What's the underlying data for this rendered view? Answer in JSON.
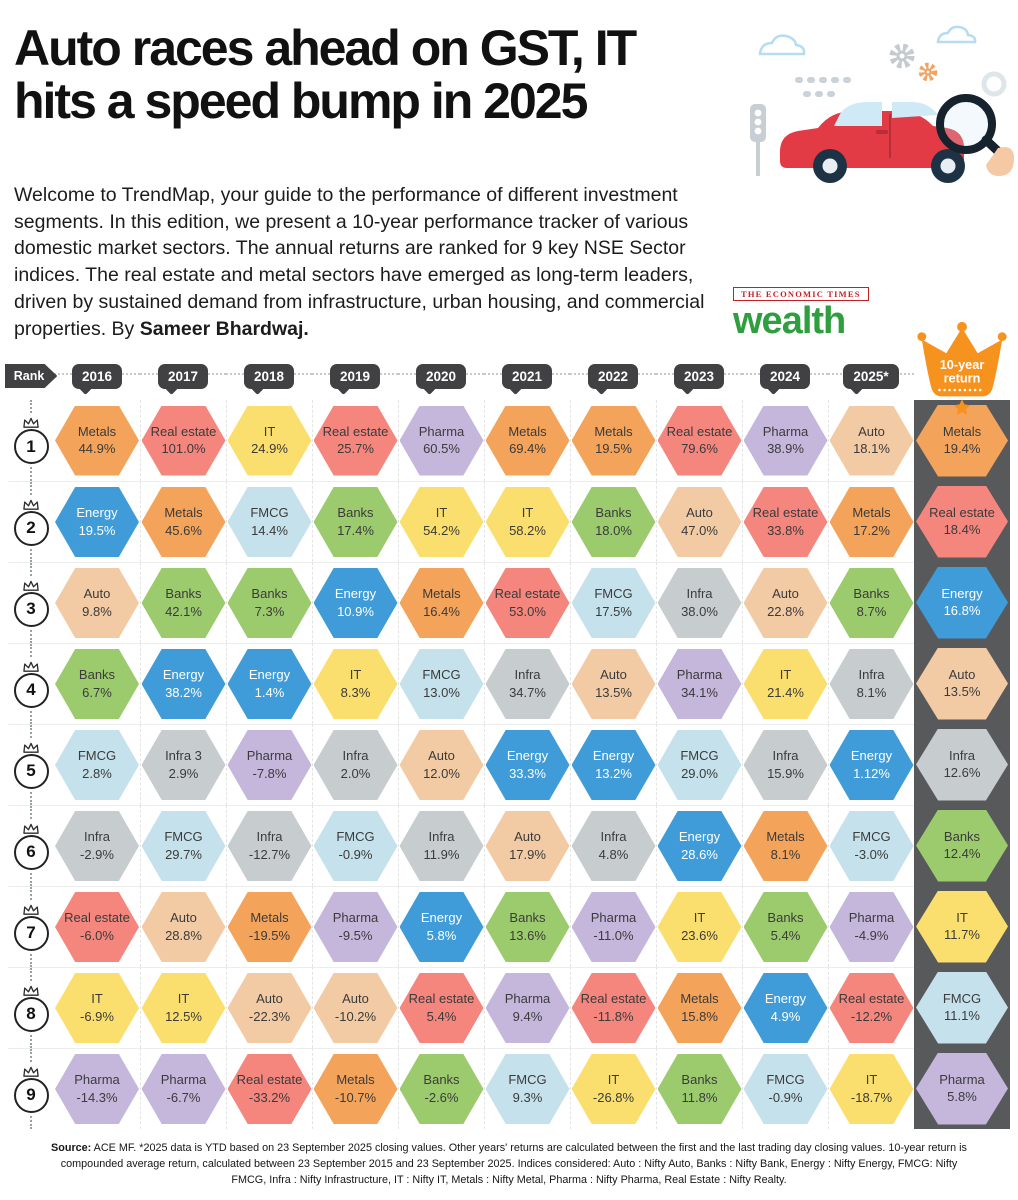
{
  "header": {
    "title_line1": "Auto races ahead on GST, IT",
    "title_line2": "hits a speed bump in 2025",
    "intro": "Welcome to TrendMap, your guide to the performance of different investment segments. In this edition, we present a 10-year performance tracker of various domestic market sectors. The annual returns are ranked for 9 key NSE Sector indices. The real estate and metal sectors have emerged as long-term leaders, driven by sustained demand from infrastructure, urban housing, and commercial properties. By",
    "author": "Sameer Bhardwaj.",
    "brand_top": "The Economic Times",
    "brand_main": "wealth"
  },
  "chart_data": {
    "type": "table",
    "title": "Auto races ahead on GST, IT hits a speed bump in 2025 - 10-year sector returns ranked 1 to 9",
    "rank_label": "Rank",
    "years": [
      "2016",
      "2017",
      "2018",
      "2019",
      "2020",
      "2021",
      "2022",
      "2023",
      "2024",
      "2025*"
    ],
    "crown_label_line1": "10-year",
    "crown_label_line2": "return",
    "crown_color": "#F6921E",
    "strip_color": "#58595b",
    "sector_colors": {
      "Metals": "#F4A35A",
      "Real estate": "#F4867E",
      "IT": "#FBDF6E",
      "Pharma": "#C5B7DC",
      "Energy": "#3F9CD9",
      "Banks": "#9CCB6E",
      "FMCG": "#C5E1EB",
      "Auto": "#F2CBA5",
      "Infra": "#C7CCCF"
    },
    "sector_text_colors": {
      "Energy": "#FFFFFF"
    },
    "default_text_color": "#3B3B3B",
    "rows": [
      {
        "rank": "1",
        "cells": [
          {
            "sector": "Metals",
            "value": "44.9%"
          },
          {
            "sector": "Real estate",
            "value": "101.0%"
          },
          {
            "sector": "IT",
            "value": "24.9%"
          },
          {
            "sector": "Real estate",
            "value": "25.7%"
          },
          {
            "sector": "Pharma",
            "value": "60.5%"
          },
          {
            "sector": "Metals",
            "value": "69.4%"
          },
          {
            "sector": "Metals",
            "value": "19.5%"
          },
          {
            "sector": "Real estate",
            "value": "79.6%"
          },
          {
            "sector": "Pharma",
            "value": "38.9%"
          },
          {
            "sector": "Auto",
            "value": "18.1%"
          }
        ],
        "ten_year": {
          "sector": "Metals",
          "value": "19.4%"
        }
      },
      {
        "rank": "2",
        "cells": [
          {
            "sector": "Energy",
            "value": "19.5%"
          },
          {
            "sector": "Metals",
            "value": "45.6%"
          },
          {
            "sector": "FMCG",
            "value": "14.4%"
          },
          {
            "sector": "Banks",
            "value": "17.4%"
          },
          {
            "sector": "IT",
            "value": "54.2%"
          },
          {
            "sector": "IT",
            "value": "58.2%"
          },
          {
            "sector": "Banks",
            "value": "18.0%"
          },
          {
            "sector": "Auto",
            "value": "47.0%"
          },
          {
            "sector": "Real estate",
            "value": "33.8%"
          },
          {
            "sector": "Metals",
            "value": "17.2%"
          }
        ],
        "ten_year": {
          "sector": "Real estate",
          "value": "18.4%"
        }
      },
      {
        "rank": "3",
        "cells": [
          {
            "sector": "Auto",
            "value": "9.8%"
          },
          {
            "sector": "Banks",
            "value": "42.1%"
          },
          {
            "sector": "Banks",
            "value": "7.3%"
          },
          {
            "sector": "Energy",
            "value": "10.9%"
          },
          {
            "sector": "Metals",
            "value": "16.4%"
          },
          {
            "sector": "Real estate",
            "value": "53.0%"
          },
          {
            "sector": "FMCG",
            "value": "17.5%"
          },
          {
            "sector": "Infra",
            "value": "38.0%"
          },
          {
            "sector": "Auto",
            "value": "22.8%"
          },
          {
            "sector": "Banks",
            "value": "8.7%"
          }
        ],
        "ten_year": {
          "sector": "Energy",
          "value": "16.8%"
        }
      },
      {
        "rank": "4",
        "cells": [
          {
            "sector": "Banks",
            "value": "6.7%"
          },
          {
            "sector": "Energy",
            "value": "38.2%"
          },
          {
            "sector": "Energy",
            "value": "1.4%"
          },
          {
            "sector": "IT",
            "value": "8.3%"
          },
          {
            "sector": "FMCG",
            "value": "13.0%"
          },
          {
            "sector": "Infra",
            "value": "34.7%"
          },
          {
            "sector": "Auto",
            "value": "13.5%"
          },
          {
            "sector": "Pharma",
            "value": "34.1%"
          },
          {
            "sector": "IT",
            "value": "21.4%"
          },
          {
            "sector": "Infra",
            "value": "8.1%"
          }
        ],
        "ten_year": {
          "sector": "Auto",
          "value": "13.5%"
        }
      },
      {
        "rank": "5",
        "cells": [
          {
            "sector": "FMCG",
            "value": "2.8%"
          },
          {
            "sector": "Infra",
            "label": "Infra 3",
            "value": "2.9%"
          },
          {
            "sector": "Pharma",
            "value": "-7.8%"
          },
          {
            "sector": "Infra",
            "value": "2.0%"
          },
          {
            "sector": "Auto",
            "value": "12.0%"
          },
          {
            "sector": "Energy",
            "value": "33.3%"
          },
          {
            "sector": "Energy",
            "value": "13.2%"
          },
          {
            "sector": "FMCG",
            "value": "29.0%"
          },
          {
            "sector": "Infra",
            "value": "15.9%"
          },
          {
            "sector": "Energy",
            "value": "1.12%"
          }
        ],
        "ten_year": {
          "sector": "Infra",
          "value": "12.6%"
        }
      },
      {
        "rank": "6",
        "cells": [
          {
            "sector": "Infra",
            "value": "-2.9%"
          },
          {
            "sector": "FMCG",
            "value": "29.7%"
          },
          {
            "sector": "Infra",
            "value": "-12.7%"
          },
          {
            "sector": "FMCG",
            "value": "-0.9%"
          },
          {
            "sector": "Infra",
            "value": "11.9%"
          },
          {
            "sector": "Auto",
            "value": "17.9%"
          },
          {
            "sector": "Infra",
            "value": "4.8%"
          },
          {
            "sector": "Energy",
            "value": "28.6%"
          },
          {
            "sector": "Metals",
            "value": "8.1%"
          },
          {
            "sector": "FMCG",
            "value": "-3.0%"
          }
        ],
        "ten_year": {
          "sector": "Banks",
          "value": "12.4%"
        }
      },
      {
        "rank": "7",
        "cells": [
          {
            "sector": "Real estate",
            "value": "-6.0%"
          },
          {
            "sector": "Auto",
            "value": "28.8%"
          },
          {
            "sector": "Metals",
            "value": "-19.5%"
          },
          {
            "sector": "Pharma",
            "value": "-9.5%"
          },
          {
            "sector": "Energy",
            "value": "5.8%"
          },
          {
            "sector": "Banks",
            "value": "13.6%"
          },
          {
            "sector": "Pharma",
            "value": "-11.0%"
          },
          {
            "sector": "IT",
            "value": "23.6%"
          },
          {
            "sector": "Banks",
            "value": "5.4%"
          },
          {
            "sector": "Pharma",
            "value": "-4.9%"
          }
        ],
        "ten_year": {
          "sector": "IT",
          "value": "11.7%"
        }
      },
      {
        "rank": "8",
        "cells": [
          {
            "sector": "IT",
            "value": "-6.9%"
          },
          {
            "sector": "IT",
            "value": "12.5%"
          },
          {
            "sector": "Auto",
            "value": "-22.3%"
          },
          {
            "sector": "Auto",
            "value": "-10.2%"
          },
          {
            "sector": "Real estate",
            "value": "5.4%"
          },
          {
            "sector": "Pharma",
            "value": "9.4%"
          },
          {
            "sector": "Real estate",
            "value": "-11.8%"
          },
          {
            "sector": "Metals",
            "value": "15.8%"
          },
          {
            "sector": "Energy",
            "value": "4.9%"
          },
          {
            "sector": "Real estate",
            "value": "-12.2%"
          }
        ],
        "ten_year": {
          "sector": "FMCG",
          "value": "11.1%"
        }
      },
      {
        "rank": "9",
        "cells": [
          {
            "sector": "Pharma",
            "value": "-14.3%"
          },
          {
            "sector": "Pharma",
            "value": "-6.7%"
          },
          {
            "sector": "Real estate",
            "value": "-33.2%"
          },
          {
            "sector": "Metals",
            "value": "-10.7%"
          },
          {
            "sector": "Banks",
            "value": "-2.6%"
          },
          {
            "sector": "FMCG",
            "value": "9.3%"
          },
          {
            "sector": "IT",
            "value": "-26.8%"
          },
          {
            "sector": "Banks",
            "value": "11.8%"
          },
          {
            "sector": "FMCG",
            "value": "-0.9%"
          },
          {
            "sector": "IT",
            "value": "-18.7%"
          }
        ],
        "ten_year": {
          "sector": "Pharma",
          "value": "5.8%"
        }
      }
    ]
  },
  "footer": {
    "source_label": "Source:",
    "text": "ACE MF. *2025 data is YTD based on 23 September 2025 closing values. Other years' returns are calculated between the first and the last trading day closing values. 10-year return is compounded average return, calculated between 23 September 2015 and 23 September 2025. Indices considered: Auto :  Nifty Auto,  Banks : Nifty Bank, Energy :  Nifty Energy, FMCG:  Nifty FMCG, Infra :  Nifty Infrastructure, IT :  Nifty IT, Metals :  Nifty Metal, Pharma :  Nifty Pharma, Real Estate :  Nifty Realty."
  }
}
